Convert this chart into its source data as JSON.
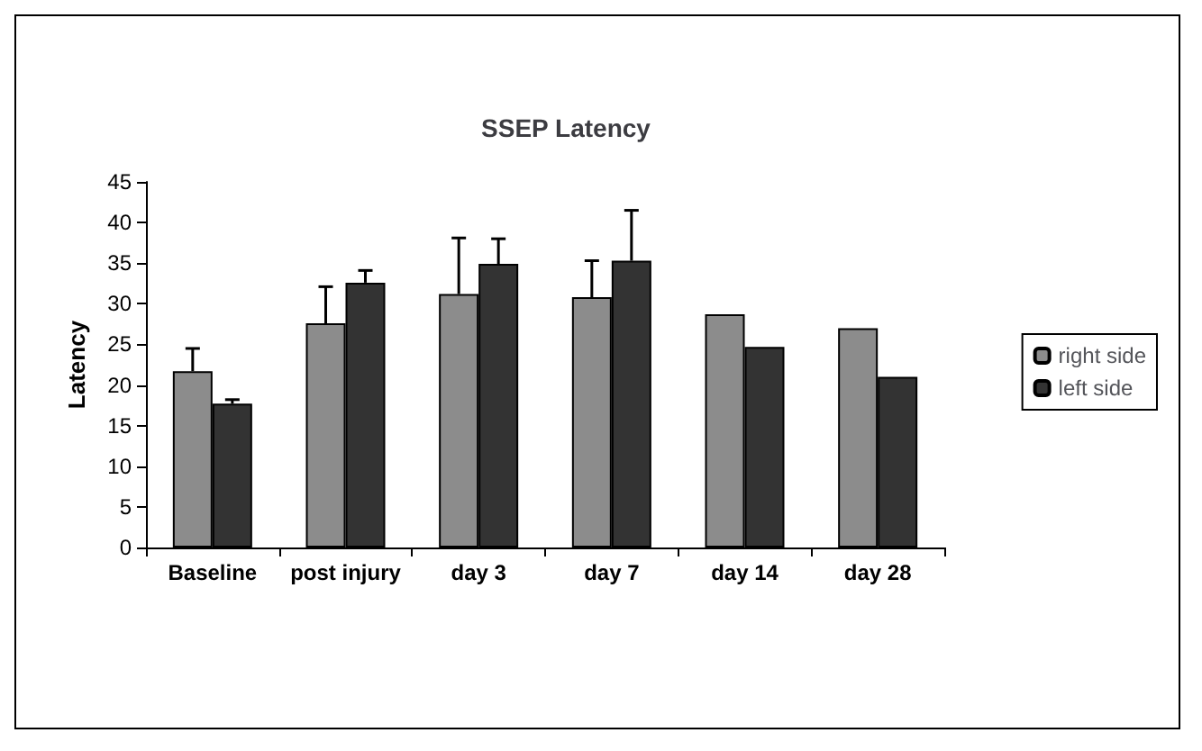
{
  "chart_data": {
    "type": "bar",
    "title": "SSEP Latency",
    "ylabel": "Latency",
    "categories": [
      "Baseline",
      "post injury",
      "day 3",
      "day 7",
      "day 14",
      "day 28"
    ],
    "series": [
      {
        "name": "right side",
        "color": "#8c8c8c",
        "values": [
          21.7,
          27.6,
          31.2,
          30.8,
          28.7,
          27.0
        ],
        "errors": [
          [
            21.7,
            24.5
          ],
          [
            27.6,
            32.1
          ],
          [
            31.2,
            38.1
          ],
          [
            30.8,
            35.3
          ],
          null,
          null
        ]
      },
      {
        "name": "left side",
        "color": "#333333",
        "values": [
          17.7,
          32.6,
          34.9,
          35.3,
          24.7,
          21.0
        ],
        "errors": [
          [
            17.7,
            18.2
          ],
          [
            32.6,
            34.1
          ],
          [
            34.9,
            38.0
          ],
          [
            35.3,
            41.5
          ],
          null,
          null
        ]
      }
    ],
    "ylim": [
      0,
      45
    ],
    "yticks": [
      0,
      5,
      10,
      15,
      20,
      25,
      30,
      35,
      40,
      45
    ],
    "grid": false,
    "legend": "right"
  }
}
